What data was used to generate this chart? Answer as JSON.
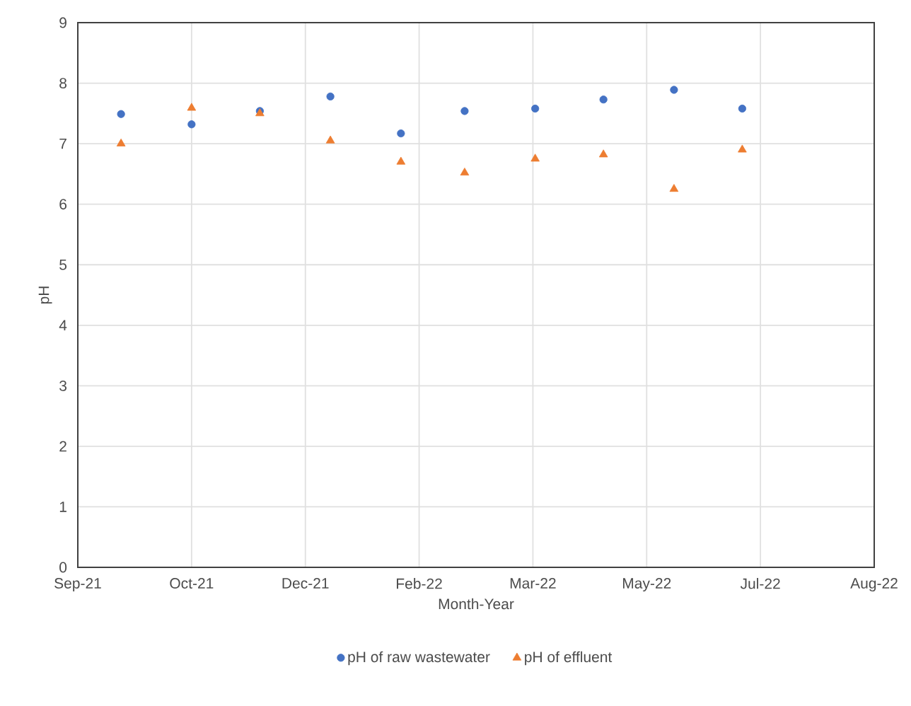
{
  "chart_data": {
    "type": "scatter",
    "xlabel": "Month-Year",
    "ylabel": "pH",
    "x": [
      "2021-09-30",
      "2021-10-31",
      "2021-11-30",
      "2021-12-31",
      "2022-01-31",
      "2022-02-28",
      "2022-03-31",
      "2022-04-30",
      "2022-05-31",
      "2022-06-30"
    ],
    "series": [
      {
        "name": "pH of raw wastewater",
        "color": "#4472c4",
        "marker": "circle",
        "values": [
          7.49,
          7.32,
          7.54,
          7.78,
          7.17,
          7.54,
          7.58,
          7.73,
          7.89,
          7.58
        ]
      },
      {
        "name": "pH of effluent",
        "color": "#ed7d31",
        "marker": "triangle",
        "values": [
          7.0,
          7.59,
          7.5,
          7.05,
          6.7,
          6.52,
          6.75,
          6.82,
          6.25,
          6.9
        ]
      }
    ],
    "xlim": [
      "2021-09-11",
      "2022-08-27"
    ],
    "xticks": [
      {
        "value": "2021-09-11",
        "label": "Sep-21"
      },
      {
        "value": "2021-10-31",
        "label": "Oct-21"
      },
      {
        "value": "2021-12-20",
        "label": "Dec-21"
      },
      {
        "value": "2022-02-08",
        "label": "Feb-22"
      },
      {
        "value": "2022-03-30",
        "label": "Mar-22"
      },
      {
        "value": "2022-05-19",
        "label": "May-22"
      },
      {
        "value": "2022-07-08",
        "label": "Jul-22"
      },
      {
        "value": "2022-08-27",
        "label": "Aug-22"
      }
    ],
    "ylim": [
      0,
      9
    ],
    "yticks": [
      0,
      1,
      2,
      3,
      4,
      5,
      6,
      7,
      8,
      9
    ],
    "grid": true,
    "legend": "bottom"
  }
}
